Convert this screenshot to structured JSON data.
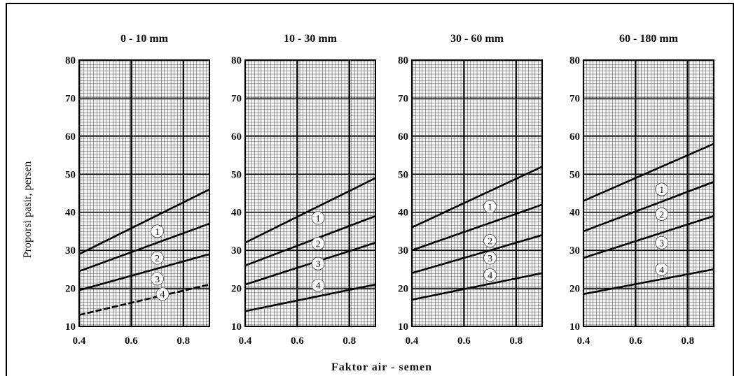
{
  "chart_data": {
    "type": "line",
    "xlabel": "Faktor air - semen",
    "ylabel": "Proporsi pasir, persen",
    "xlim": [
      0.4,
      0.9
    ],
    "ylim": [
      10,
      80
    ],
    "x_ticks": [
      "0.4",
      "0.6",
      "0.8"
    ],
    "y_ticks": [
      "10",
      "20",
      "30",
      "40",
      "50",
      "60",
      "70",
      "80"
    ],
    "grid": "on",
    "panels": [
      {
        "title": "0 - 10 mm",
        "series": [
          {
            "name": "1",
            "x": [
              0.4,
              0.9
            ],
            "y": [
              29,
              46
            ]
          },
          {
            "name": "2",
            "x": [
              0.4,
              0.9
            ],
            "y": [
              24.5,
              37
            ]
          },
          {
            "name": "3",
            "x": [
              0.4,
              0.9
            ],
            "y": [
              19.5,
              29
            ]
          },
          {
            "name": "4",
            "x": [
              0.4,
              0.9
            ],
            "y": [
              13,
              21
            ]
          }
        ],
        "curve_labels": [
          {
            "name": "1",
            "x": 0.7,
            "y": 35
          },
          {
            "name": "2",
            "x": 0.7,
            "y": 28
          },
          {
            "name": "3",
            "x": 0.7,
            "y": 22.5
          },
          {
            "name": "4",
            "x": 0.72,
            "y": 18.5
          }
        ],
        "dashed": [
          false,
          false,
          false,
          true
        ]
      },
      {
        "title": "10 - 30 mm",
        "series": [
          {
            "name": "1",
            "x": [
              0.4,
              0.9
            ],
            "y": [
              32,
              49
            ]
          },
          {
            "name": "2",
            "x": [
              0.4,
              0.9
            ],
            "y": [
              26,
              39
            ]
          },
          {
            "name": "3",
            "x": [
              0.4,
              0.9
            ],
            "y": [
              21,
              32
            ]
          },
          {
            "name": "4",
            "x": [
              0.4,
              0.9
            ],
            "y": [
              14,
              21
            ]
          }
        ],
        "curve_labels": [
          {
            "name": "1",
            "x": 0.68,
            "y": 38.5
          },
          {
            "name": "2",
            "x": 0.68,
            "y": 31.8
          },
          {
            "name": "3",
            "x": 0.68,
            "y": 26.5
          },
          {
            "name": "4",
            "x": 0.68,
            "y": 20.8
          }
        ],
        "dashed": [
          false,
          false,
          false,
          false
        ]
      },
      {
        "title": "30 - 60 mm",
        "series": [
          {
            "name": "1",
            "x": [
              0.4,
              0.9
            ],
            "y": [
              36,
              52
            ]
          },
          {
            "name": "2",
            "x": [
              0.4,
              0.9
            ],
            "y": [
              30,
              42
            ]
          },
          {
            "name": "3",
            "x": [
              0.4,
              0.9
            ],
            "y": [
              24,
              34
            ]
          },
          {
            "name": "4",
            "x": [
              0.4,
              0.9
            ],
            "y": [
              17,
              24
            ]
          }
        ],
        "curve_labels": [
          {
            "name": "1",
            "x": 0.7,
            "y": 41.5
          },
          {
            "name": "2",
            "x": 0.7,
            "y": 32.5
          },
          {
            "name": "3",
            "x": 0.7,
            "y": 28
          },
          {
            "name": "4",
            "x": 0.7,
            "y": 23.5
          }
        ],
        "dashed": [
          false,
          false,
          false,
          false
        ]
      },
      {
        "title": "60 - 180 mm",
        "series": [
          {
            "name": "1",
            "x": [
              0.4,
              0.9
            ],
            "y": [
              43,
              58
            ]
          },
          {
            "name": "2",
            "x": [
              0.4,
              0.9
            ],
            "y": [
              35,
              48
            ]
          },
          {
            "name": "3",
            "x": [
              0.4,
              0.9
            ],
            "y": [
              28,
              39
            ]
          },
          {
            "name": "4",
            "x": [
              0.4,
              0.9
            ],
            "y": [
              18.5,
              25
            ]
          }
        ],
        "curve_labels": [
          {
            "name": "1",
            "x": 0.7,
            "y": 46
          },
          {
            "name": "2",
            "x": 0.7,
            "y": 39.5
          },
          {
            "name": "3",
            "x": 0.7,
            "y": 32
          },
          {
            "name": "4",
            "x": 0.7,
            "y": 25
          }
        ],
        "dashed": [
          false,
          false,
          false,
          false
        ]
      }
    ]
  }
}
